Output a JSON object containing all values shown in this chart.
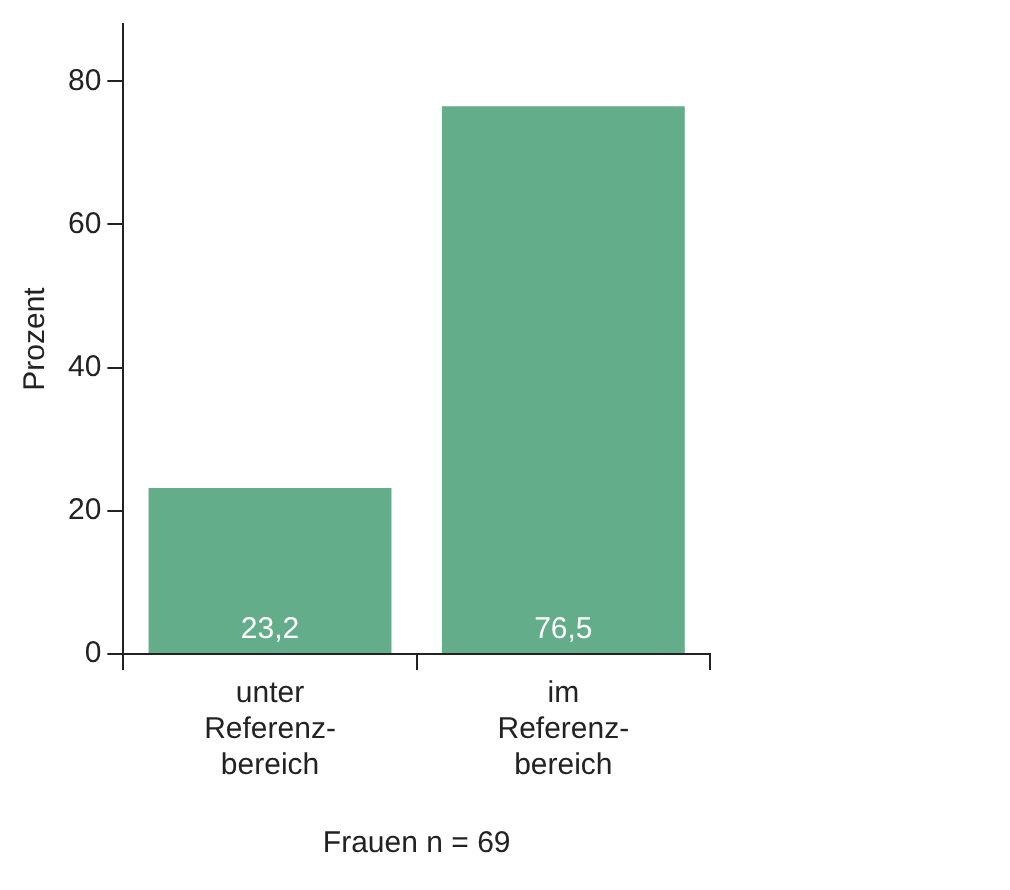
{
  "chart_data": {
    "type": "bar",
    "categories": [
      "unter\nReferenz-\nbereich",
      "im\nReferenz-\nbereich"
    ],
    "values": [
      23.2,
      76.5
    ],
    "value_labels": [
      "23,2",
      "76,5"
    ],
    "color": "#64ad8a",
    "ylabel": "Prozent",
    "xlabel": "Frauen n = 69",
    "ylim": [
      0,
      88
    ],
    "yticks": [
      0,
      20,
      40,
      60,
      80
    ],
    "grid": false,
    "legend": false
  }
}
